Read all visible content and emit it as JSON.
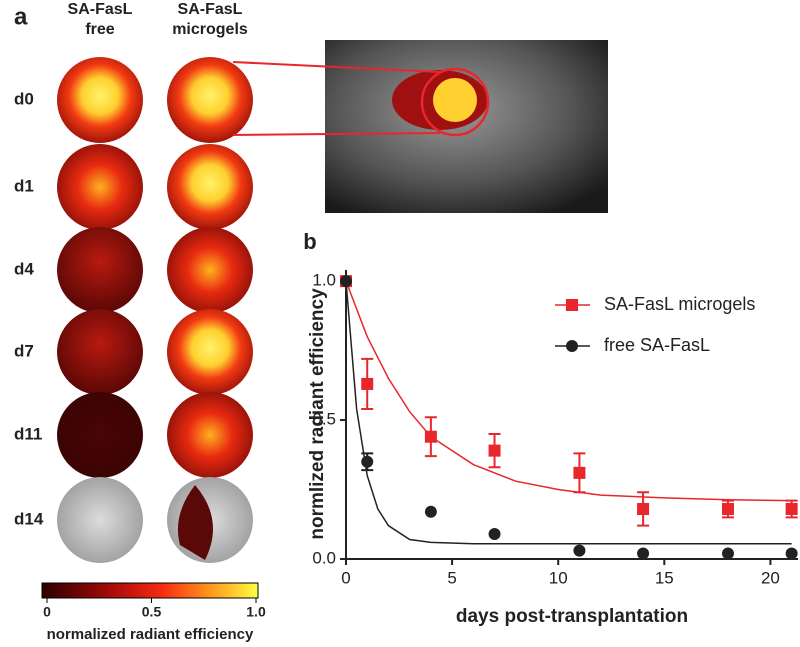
{
  "panel_a": {
    "label": "a",
    "columns": [
      [
        "SA-FasL",
        "free"
      ],
      [
        "SA-FasL",
        "microgels"
      ]
    ],
    "rows": [
      "d0",
      "d1",
      "d4",
      "d7",
      "d11",
      "d14"
    ],
    "colorbar": {
      "label": "normalized radiant efficiency",
      "ticks": [
        0,
        0.5,
        {
          "value": 1,
          "label": "1.0"
        }
      ],
      "lim": [
        0,
        1
      ]
    }
  },
  "chart_data": {
    "type": "scatter",
    "panel_label": "b",
    "x_label": "days post-transplantation",
    "y_label": "normlized radiant efficiency",
    "xlim": [
      0,
      21.3
    ],
    "xticks": [
      0,
      5,
      10,
      15,
      20
    ],
    "ylim": [
      0,
      1.04
    ],
    "yticks": [
      {
        "value": 0,
        "label": "0.0"
      },
      0.5,
      {
        "value": 1,
        "label": "1.0"
      }
    ],
    "series": [
      {
        "name": "SA-FasL microgels",
        "color": "#e8262b",
        "marker": "square",
        "x": [
          0,
          1,
          4,
          7,
          11,
          14,
          18,
          21
        ],
        "values": [
          1.0,
          0.63,
          0.44,
          0.39,
          0.31,
          0.18,
          0.18,
          0.18
        ],
        "errors": [
          0,
          0.09,
          0.07,
          0.06,
          0.07,
          0.06,
          0.03,
          0.03
        ],
        "fit": {
          "x": [
            0,
            1,
            2,
            3,
            4,
            6,
            8,
            10,
            12,
            15,
            18,
            21
          ],
          "values": [
            1.0,
            0.8,
            0.65,
            0.53,
            0.44,
            0.34,
            0.28,
            0.25,
            0.23,
            0.22,
            0.213,
            0.21
          ]
        }
      },
      {
        "name": "free SA-FasL",
        "color": "#222222",
        "marker": "circle",
        "x": [
          0,
          1,
          4,
          7,
          11,
          14,
          18,
          21
        ],
        "values": [
          1.0,
          0.35,
          0.17,
          0.09,
          0.03,
          0.02,
          0.02,
          0.02
        ],
        "errors": [
          0,
          0.03,
          0,
          0,
          0,
          0,
          0,
          0
        ],
        "fit": {
          "x": [
            0,
            0.5,
            1,
            1.5,
            2,
            3,
            4,
            6,
            21
          ],
          "values": [
            1.0,
            0.54,
            0.3,
            0.18,
            0.12,
            0.07,
            0.06,
            0.055,
            0.055
          ]
        }
      }
    ]
  }
}
